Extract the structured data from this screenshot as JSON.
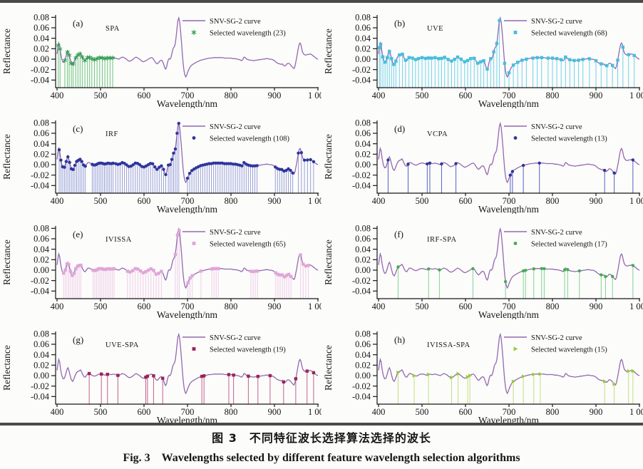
{
  "figure": {
    "caption_zh": "图 3　不同特征波长选择算法选择的波长",
    "caption_en": "Fig. 3　Wavelengths selected by different feature wavelength selection algorithms"
  },
  "chart_data": {
    "type": "line",
    "title": "Wavelengths selected by different feature wavelength selection algorithms",
    "xlabel": "Wavelength/nm",
    "ylabel": "Reflectance",
    "xlim": [
      400,
      1000
    ],
    "ylim": [
      -0.05,
      0.085
    ],
    "grid": false,
    "legend_position": "top-right",
    "xticks": {
      "values": [
        400,
        500,
        600,
        700,
        800,
        900,
        1000
      ],
      "labels": [
        "400",
        "500",
        "600",
        "700",
        "800",
        "900",
        "1 000"
      ]
    },
    "yticks": {
      "values": [
        0.08,
        0.06,
        0.04,
        0.02,
        0,
        -0.02,
        -0.04
      ],
      "labels": [
        "0.08",
        "0.06",
        "0.04",
        "0.02",
        "0.00",
        "-0.02",
        "-0.04"
      ]
    },
    "curve_label": "SNV-SG-2 curve",
    "curve_color": "#9468af",
    "snv_sg2_curve": [
      [
        400,
        0.01
      ],
      [
        402,
        0.022
      ],
      [
        404,
        0.031
      ],
      [
        406,
        0.026
      ],
      [
        408,
        0.013
      ],
      [
        411,
        0.0
      ],
      [
        414,
        -0.006
      ],
      [
        417,
        -0.005
      ],
      [
        420,
        0.003
      ],
      [
        423,
        0.012
      ],
      [
        425,
        0.015
      ],
      [
        427,
        0.011
      ],
      [
        430,
        0.001
      ],
      [
        433,
        -0.008
      ],
      [
        436,
        -0.011
      ],
      [
        439,
        -0.006
      ],
      [
        442,
        0.001
      ],
      [
        445,
        0.006
      ],
      [
        448,
        0.008
      ],
      [
        451,
        0.009
      ],
      [
        454,
        0.011
      ],
      [
        456,
        0.008
      ],
      [
        459,
        0.002
      ],
      [
        462,
        -0.002
      ],
      [
        465,
        -0.003
      ],
      [
        468,
        0.001
      ],
      [
        471,
        0.004
      ],
      [
        474,
        0.004
      ],
      [
        478,
        0.002
      ],
      [
        482,
        0.0
      ],
      [
        486,
        -0.001
      ],
      [
        490,
        0.0
      ],
      [
        494,
        0.002
      ],
      [
        498,
        0.003
      ],
      [
        502,
        0.003
      ],
      [
        506,
        0.002
      ],
      [
        510,
        0.001
      ],
      [
        514,
        0.002
      ],
      [
        518,
        0.003
      ],
      [
        522,
        0.002
      ],
      [
        526,
        0.002
      ],
      [
        530,
        0.003
      ],
      [
        534,
        0.002
      ],
      [
        538,
        0.001
      ],
      [
        542,
        0.0
      ],
      [
        546,
        0.002
      ],
      [
        550,
        0.004
      ],
      [
        554,
        0.003
      ],
      [
        558,
        0.001
      ],
      [
        562,
        -0.002
      ],
      [
        566,
        -0.004
      ],
      [
        570,
        -0.003
      ],
      [
        574,
        -0.001
      ],
      [
        578,
        0.002
      ],
      [
        582,
        0.004
      ],
      [
        586,
        0.002
      ],
      [
        590,
        0.0
      ],
      [
        594,
        -0.003
      ],
      [
        598,
        -0.005
      ],
      [
        602,
        -0.004
      ],
      [
        606,
        -0.002
      ],
      [
        610,
        0.0
      ],
      [
        614,
        0.002
      ],
      [
        618,
        0.003
      ],
      [
        621,
        0.001
      ],
      [
        624,
        -0.003
      ],
      [
        627,
        -0.007
      ],
      [
        630,
        -0.009
      ],
      [
        633,
        -0.007
      ],
      [
        636,
        -0.004
      ],
      [
        639,
        -0.002
      ],
      [
        642,
        -0.003
      ],
      [
        645,
        -0.009
      ],
      [
        648,
        -0.017
      ],
      [
        650,
        -0.019
      ],
      [
        652,
        -0.015
      ],
      [
        654,
        -0.007
      ],
      [
        656,
        -0.001
      ],
      [
        658,
        0.001
      ],
      [
        660,
        0.0
      ],
      [
        662,
        0.003
      ],
      [
        664,
        0.01
      ],
      [
        666,
        0.018
      ],
      [
        668,
        0.022
      ],
      [
        670,
        0.024
      ],
      [
        672,
        0.03
      ],
      [
        674,
        0.043
      ],
      [
        676,
        0.06
      ],
      [
        678,
        0.074
      ],
      [
        680,
        0.079
      ],
      [
        682,
        0.072
      ],
      [
        684,
        0.055
      ],
      [
        686,
        0.034
      ],
      [
        688,
        0.012
      ],
      [
        690,
        -0.008
      ],
      [
        692,
        -0.022
      ],
      [
        694,
        -0.03
      ],
      [
        696,
        -0.034
      ],
      [
        698,
        -0.031
      ],
      [
        700,
        -0.026
      ],
      [
        703,
        -0.02
      ],
      [
        706,
        -0.015
      ],
      [
        709,
        -0.012
      ],
      [
        712,
        -0.01
      ],
      [
        716,
        -0.008
      ],
      [
        720,
        -0.006
      ],
      [
        725,
        -0.004
      ],
      [
        730,
        -0.002
      ],
      [
        735,
        -0.001
      ],
      [
        740,
        0.0
      ],
      [
        745,
        0.001
      ],
      [
        750,
        0.002
      ],
      [
        755,
        0.002
      ],
      [
        760,
        0.003
      ],
      [
        765,
        0.003
      ],
      [
        770,
        0.003
      ],
      [
        775,
        0.003
      ],
      [
        780,
        0.003
      ],
      [
        785,
        0.002
      ],
      [
        790,
        0.002
      ],
      [
        795,
        0.002
      ],
      [
        800,
        0.002
      ],
      [
        805,
        0.001
      ],
      [
        810,
        0.001
      ],
      [
        815,
        0.0
      ],
      [
        820,
        -0.001
      ],
      [
        824,
        -0.003
      ],
      [
        827,
        -0.001
      ],
      [
        830,
        0.004
      ],
      [
        833,
        0.003
      ],
      [
        836,
        0.0
      ],
      [
        840,
        -0.001
      ],
      [
        844,
        -0.002
      ],
      [
        848,
        -0.002
      ],
      [
        852,
        -0.003
      ],
      [
        856,
        -0.002
      ],
      [
        860,
        -0.002
      ],
      [
        864,
        -0.001
      ],
      [
        868,
        -0.001
      ],
      [
        872,
        0.0
      ],
      [
        876,
        0.0
      ],
      [
        880,
        0.001
      ],
      [
        884,
        0.001
      ],
      [
        888,
        0.0
      ],
      [
        892,
        0.0
      ],
      [
        896,
        -0.001
      ],
      [
        900,
        -0.003
      ],
      [
        904,
        -0.006
      ],
      [
        908,
        -0.008
      ],
      [
        912,
        -0.009
      ],
      [
        915,
        -0.01
      ],
      [
        918,
        -0.009
      ],
      [
        921,
        -0.012
      ],
      [
        924,
        -0.013
      ],
      [
        927,
        -0.011
      ],
      [
        930,
        -0.008
      ],
      [
        933,
        -0.008
      ],
      [
        936,
        -0.01
      ],
      [
        939,
        -0.013
      ],
      [
        942,
        -0.016
      ],
      [
        945,
        -0.018
      ],
      [
        947,
        -0.014
      ],
      [
        949,
        -0.006
      ],
      [
        951,
        0.002
      ],
      [
        953,
        0.012
      ],
      [
        955,
        0.022
      ],
      [
        957,
        0.029
      ],
      [
        959,
        0.031
      ],
      [
        961,
        0.027
      ],
      [
        963,
        0.019
      ],
      [
        965,
        0.013
      ],
      [
        967,
        0.01
      ],
      [
        970,
        0.008
      ],
      [
        973,
        0.008
      ],
      [
        976,
        0.009
      ],
      [
        979,
        0.009
      ],
      [
        982,
        0.01
      ],
      [
        985,
        0.009
      ],
      [
        988,
        0.007
      ],
      [
        991,
        0.005
      ],
      [
        994,
        0.003
      ],
      [
        997,
        0.001
      ],
      [
        1000,
        0.0
      ]
    ],
    "panels": [
      {
        "letter": "(a)",
        "algorithm": "SPA",
        "selected_count": 23,
        "selected_label": "Selected wavelength (23)",
        "marker": "star",
        "marker_color": "#2f9e4e",
        "stem_color": "#6cc47e",
        "selected_wavelengths": [
          403,
          407,
          418,
          424,
          428,
          433,
          437,
          443,
          448,
          453,
          458,
          464,
          470,
          475,
          480,
          486,
          492,
          498,
          504,
          510,
          516,
          522,
          528
        ]
      },
      {
        "letter": "(b)",
        "algorithm": "UVE",
        "selected_count": 68,
        "selected_label": "Selected wavelength (68)",
        "marker": "square",
        "marker_color": "#45bede",
        "stem_color": "#72d2e8",
        "selected_wavelengths": [
          402,
          405,
          410,
          415,
          420,
          425,
          430,
          435,
          440,
          448,
          455,
          462,
          470,
          478,
          485,
          492,
          500,
          508,
          515,
          522,
          530,
          538,
          545,
          552,
          560,
          568,
          575,
          582,
          590,
          598,
          605,
          612,
          620,
          628,
          635,
          642,
          650,
          658,
          665,
          672,
          678,
          690,
          700,
          710,
          720,
          730,
          740,
          755,
          765,
          775,
          790,
          800,
          810,
          820,
          830,
          840,
          850,
          860,
          870,
          885,
          900,
          912,
          925,
          938,
          950,
          962,
          975,
          988
        ]
      },
      {
        "letter": "(c)",
        "algorithm": "IRF",
        "selected_count": 108,
        "selected_label": "Selected wavelength (108)",
        "marker": "circle",
        "marker_color": "#2e359c",
        "stem_color": "#98a0d8",
        "selected_wavelengths": [
          405,
          409,
          413,
          417,
          421,
          425,
          429,
          433,
          437,
          441,
          445,
          449,
          453,
          457,
          461,
          465,
          481,
          485,
          489,
          493,
          497,
          501,
          505,
          509,
          513,
          517,
          521,
          525,
          529,
          535,
          540,
          545,
          550,
          555,
          560,
          565,
          570,
          575,
          580,
          585,
          590,
          595,
          600,
          605,
          610,
          615,
          620,
          625,
          630,
          635,
          640,
          645,
          650,
          656,
          660,
          664,
          668,
          672,
          676,
          680,
          700,
          705,
          710,
          715,
          720,
          725,
          730,
          735,
          740,
          745,
          750,
          755,
          760,
          765,
          770,
          775,
          780,
          785,
          790,
          795,
          800,
          805,
          810,
          815,
          820,
          825,
          830,
          835,
          840,
          845,
          850,
          855,
          860,
          902,
          907,
          912,
          917,
          922,
          927,
          932,
          937,
          942,
          955,
          962,
          969,
          976,
          983,
          990
        ]
      },
      {
        "letter": "(d)",
        "algorithm": "VCPA",
        "selected_count": 13,
        "selected_label": "Selected wavelength (13)",
        "marker": "circle",
        "marker_color": "#2e359c",
        "stem_color": "#5560c4",
        "selected_wavelengths": [
          422,
          468,
          512,
          518,
          545,
          578,
          703,
          708,
          733,
          770,
          920,
          942,
          985
        ]
      },
      {
        "letter": "(e)",
        "algorithm": "IVISSA",
        "selected_count": 65,
        "selected_label": "Selected wavelength (65)",
        "marker": "square",
        "marker_color": "#dfa6d8",
        "stem_color": "#efcde8",
        "selected_wavelengths": [
          415,
          419,
          423,
          427,
          431,
          435,
          439,
          443,
          447,
          451,
          455,
          483,
          487,
          491,
          495,
          499,
          503,
          507,
          511,
          515,
          519,
          523,
          527,
          531,
          562,
          568,
          574,
          580,
          586,
          592,
          598,
          604,
          610,
          616,
          622,
          628,
          634,
          640,
          672,
          677,
          681,
          701,
          706,
          711,
          731,
          756,
          761,
          766,
          771,
          846,
          851,
          856,
          861,
          903,
          908,
          913,
          918,
          923,
          928,
          933,
          938,
          960,
          966,
          972,
          978
        ]
      },
      {
        "letter": "(f)",
        "algorithm": "IRF-SPA",
        "selected_count": 17,
        "selected_label": "Selected wavelength (17)",
        "marker": "circle",
        "marker_color": "#3fae52",
        "stem_color": "#85d292",
        "selected_wavelengths": [
          445,
          515,
          540,
          617,
          692,
          733,
          738,
          757,
          775,
          781,
          828,
          835,
          862,
          912,
          922,
          938,
          985
        ]
      },
      {
        "letter": "(g)",
        "algorithm": "UVE-SPA",
        "selected_count": 19,
        "selected_label": "Selected wavelength (19)",
        "marker": "square",
        "marker_color": "#9e2355",
        "stem_color": "#c4608d",
        "selected_wavelengths": [
          474,
          502,
          516,
          540,
          604,
          608,
          622,
          643,
          733,
          738,
          795,
          806,
          840,
          862,
          890,
          921,
          949,
          975,
          990
        ]
      },
      {
        "letter": "(h)",
        "algorithm": "IVISSA-SPA",
        "selected_count": 15,
        "selected_label": "Selected wavelength (15)",
        "marker": "triangle-right",
        "marker_color": "#94c93c",
        "stem_color": "#c2df7d",
        "selected_wavelengths": [
          445,
          482,
          515,
          568,
          583,
          605,
          610,
          710,
          733,
          757,
          772,
          920,
          942,
          975,
          985
        ]
      }
    ]
  }
}
